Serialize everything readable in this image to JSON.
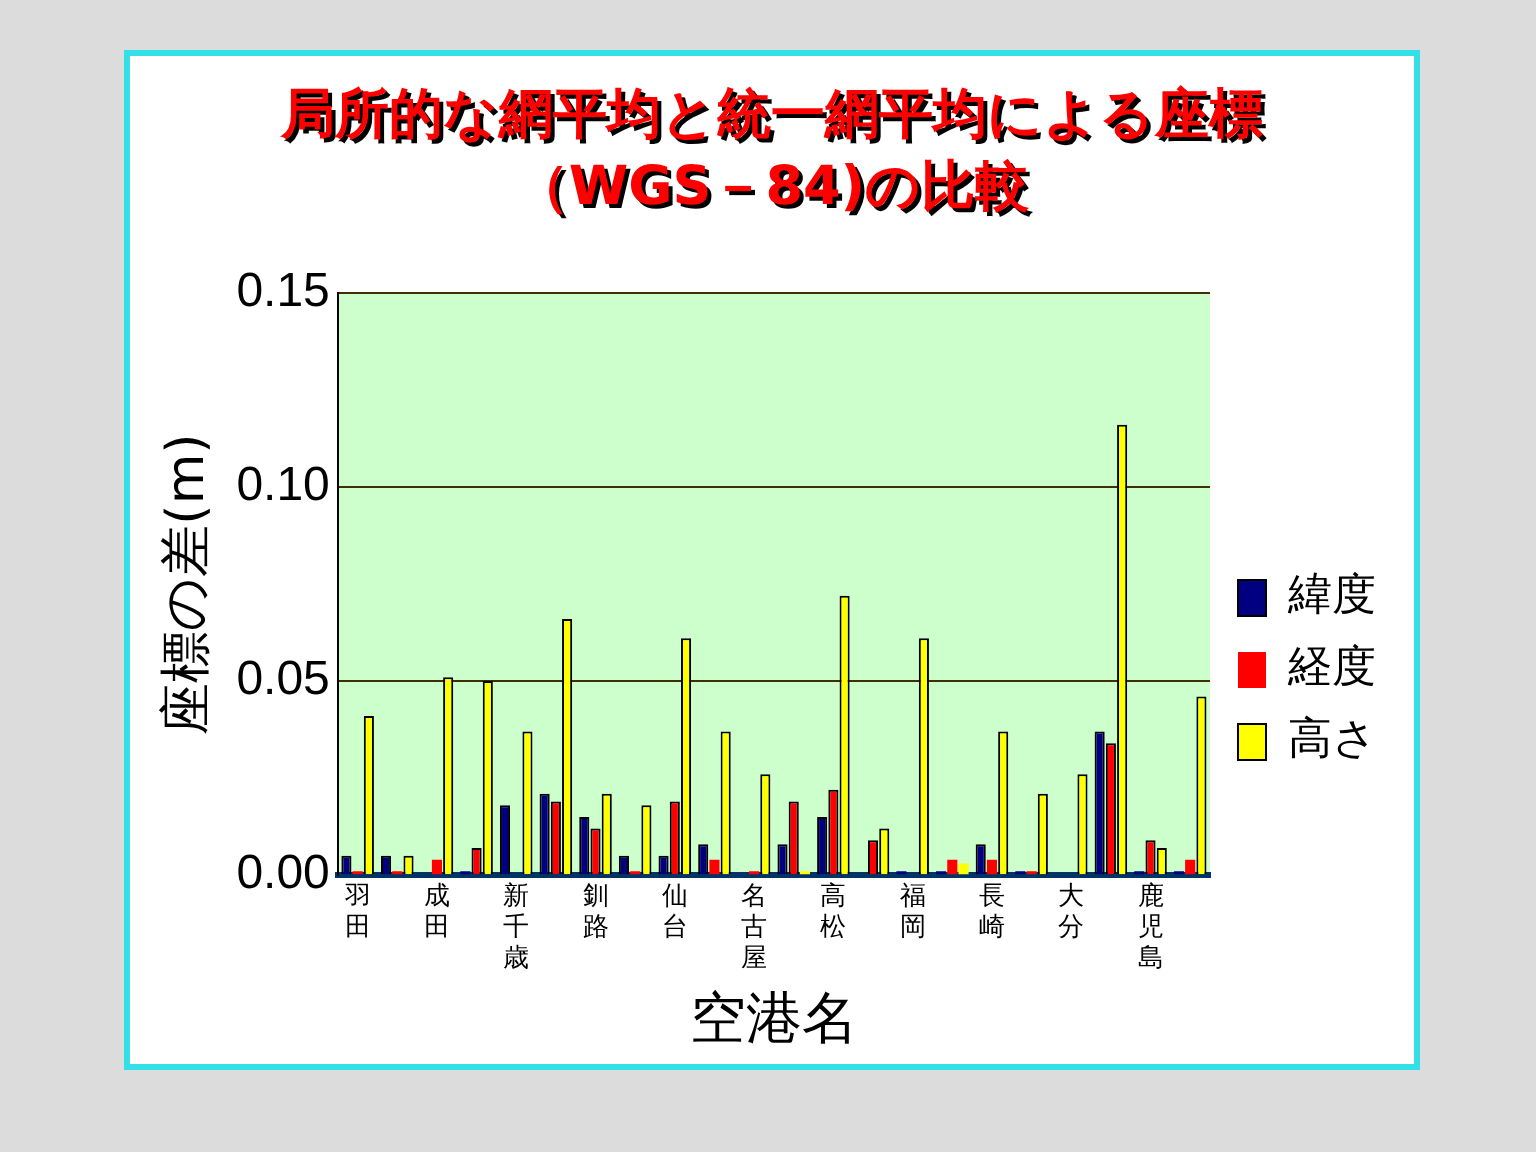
{
  "chart_data": {
    "type": "bar",
    "title": "局所的な網平均と統一網平均による座標",
    "subtitle": "（WGS－84)の比較",
    "xlabel": "空港名",
    "ylabel": "座標の差(m)",
    "categories": [
      "羽田",
      null,
      "成田",
      null,
      "新千歳",
      null,
      "釧路",
      null,
      "仙台",
      null,
      "名古屋",
      null,
      "高松",
      null,
      "福岡",
      null,
      "長崎",
      null,
      "大分",
      null,
      "鹿児島",
      null
    ],
    "series": [
      {
        "name": "緯度",
        "color": "#000080",
        "values": [
          0.005,
          0.005,
          0,
          0.001,
          0.018,
          0.021,
          0.015,
          0.005,
          0.005,
          0.008,
          0,
          0.008,
          0.015,
          0,
          0.001,
          0.001,
          0.008,
          0.001,
          0,
          0.037,
          0.001,
          0.001
        ]
      },
      {
        "name": "経度",
        "color": "#ff0000",
        "values": [
          0.001,
          0.001,
          0.004,
          0.007,
          0,
          0.019,
          0.012,
          0.001,
          0.019,
          0.004,
          0.001,
          0.019,
          0.022,
          0.009,
          0,
          0.004,
          0.004,
          0.001,
          0,
          0.034,
          0.009,
          0.004
        ]
      },
      {
        "name": "高さ",
        "color": "#ffff00",
        "values": [
          0.041,
          0.005,
          0.051,
          0.05,
          0.037,
          0.066,
          0.021,
          0.018,
          0.061,
          0.037,
          0.026,
          0.001,
          0.072,
          0.012,
          0.061,
          0.003,
          0.037,
          0.021,
          0.026,
          0.116,
          0.007,
          0.046
        ]
      }
    ],
    "ylim": [
      0,
      0.15
    ],
    "yticks": [
      {
        "value": 0,
        "label": "0.00"
      },
      {
        "value": 0.05,
        "label": "0.05"
      },
      {
        "value": 0.1,
        "label": "0.10"
      },
      {
        "value": 0.15,
        "label": "0.15"
      }
    ],
    "grid": "y",
    "legend": "right"
  }
}
